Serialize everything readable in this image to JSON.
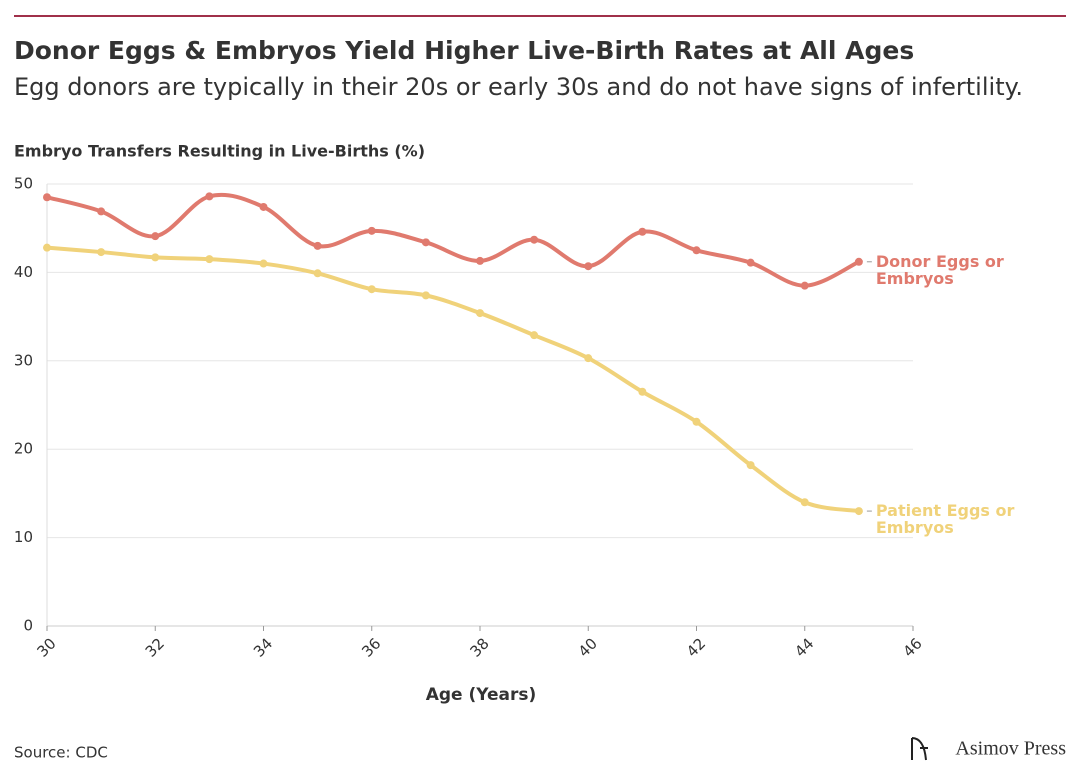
{
  "chart_data": {
    "type": "line",
    "title": "Donor Eggs & Embryos Yield Higher Live-Birth Rates at All Ages",
    "subtitle": "Egg donors are typically in their 20s or early 30s and do not have signs of infertility.",
    "y_label": "Embryo Transfers Resulting in Live-Births (%)",
    "x_label": "Age (Years)",
    "x": [
      30,
      31,
      32,
      33,
      34,
      35,
      36,
      37,
      38,
      39,
      40,
      41,
      42,
      43,
      44,
      45
    ],
    "series": [
      {
        "name": "Donor Eggs or Embryos",
        "color": "#e07a6e",
        "values": [
          48.5,
          46.9,
          44.1,
          48.6,
          47.4,
          43.0,
          44.7,
          43.4,
          41.3,
          43.7,
          40.7,
          44.6,
          42.5,
          41.1,
          38.5,
          41.2
        ]
      },
      {
        "name": "Patient Eggs or Embryos",
        "color": "#f0d27a",
        "values": [
          42.8,
          42.3,
          41.7,
          41.5,
          41.0,
          39.9,
          38.1,
          37.4,
          35.4,
          32.9,
          30.3,
          26.5,
          23.1,
          18.2,
          14.0,
          13.0
        ]
      }
    ],
    "xlim": [
      30,
      46
    ],
    "xticks": [
      30,
      32,
      34,
      36,
      38,
      40,
      42,
      44,
      46
    ],
    "ylim": [
      0,
      50
    ],
    "yticks": [
      0,
      10,
      20,
      30,
      40,
      50
    ],
    "grid": true,
    "source": "Source: CDC",
    "brand": "Asimov Press"
  }
}
